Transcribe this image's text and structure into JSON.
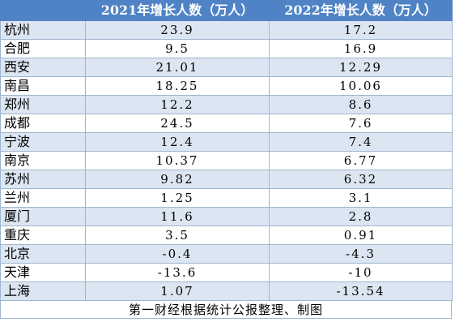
{
  "table": {
    "headers": {
      "city": "",
      "col_2021": "2021年增长人数（万人）",
      "col_2022": "2022年增长人数（万人）"
    },
    "rows": [
      {
        "city": "杭州",
        "v2021": "23.9",
        "v2022": "17.2"
      },
      {
        "city": "合肥",
        "v2021": "9.5",
        "v2022": "16.9"
      },
      {
        "city": "西安",
        "v2021": "21.01",
        "v2022": "12.29"
      },
      {
        "city": "南昌",
        "v2021": "18.25",
        "v2022": "10.06"
      },
      {
        "city": "郑州",
        "v2021": "12.2",
        "v2022": "8.6"
      },
      {
        "city": "成都",
        "v2021": "24.5",
        "v2022": "7.6"
      },
      {
        "city": "宁波",
        "v2021": "12.4",
        "v2022": "7.4"
      },
      {
        "city": "南京",
        "v2021": "10.37",
        "v2022": "6.77"
      },
      {
        "city": "苏州",
        "v2021": "9.82",
        "v2022": "6.32"
      },
      {
        "city": "兰州",
        "v2021": "1.25",
        "v2022": "3.1"
      },
      {
        "city": "厦门",
        "v2021": "11.6",
        "v2022": "2.8"
      },
      {
        "city": "重庆",
        "v2021": "3.5",
        "v2022": "0.91"
      },
      {
        "city": "北京",
        "v2021": "-0.4",
        "v2022": "-4.3"
      },
      {
        "city": "天津",
        "v2021": "-13.6",
        "v2022": "-10"
      },
      {
        "city": "上海",
        "v2021": "1.07",
        "v2022": "-13.54"
      }
    ],
    "caption": "第一财经根据统计公报整理、制图"
  },
  "colors": {
    "header_bg": "#4f83c5",
    "header_text": "#ffffff",
    "stripe_bg": "#dce6f2",
    "row_bg": "#ffffff"
  }
}
